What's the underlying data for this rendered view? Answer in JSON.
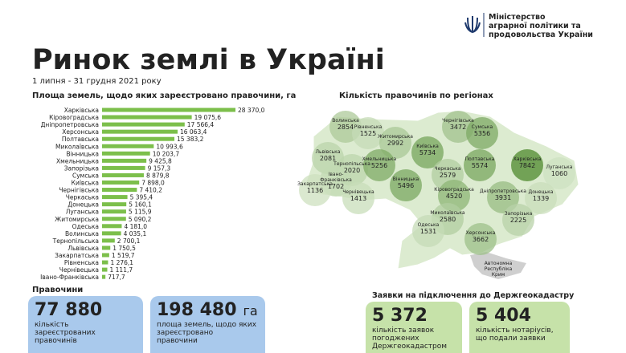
{
  "header": {
    "ministry": [
      "Міністерство",
      "аграрної політики та",
      "продовольства України"
    ],
    "title": "Ринок землі в Україні",
    "period": "1 липня - 31 грудня 2021 року"
  },
  "bar_chart": {
    "type": "bar",
    "orientation": "horizontal",
    "title": "Площа земель, щодо яких зареєстровано правочини, га",
    "color": "#7cbf4b",
    "categories": [
      "Харківська",
      "Кіровоградська",
      "Дніпропетровська",
      "Херсонська",
      "Полтавська",
      "Миколаївська",
      "Вінницька",
      "Хмельницька",
      "Запорізька",
      "Сумська",
      "Київська",
      "Чернігівська",
      "Черкаська",
      "Донецька",
      "Луганська",
      "Житомирська",
      "Одеська",
      "Волинська",
      "Тернопільська",
      "Львівська",
      "Закарпатська",
      "Рівненська",
      "Чернівецька",
      "Івано-Франківська"
    ],
    "values": [
      28370.0,
      19075.6,
      17566.4,
      16063.4,
      15383.2,
      10993.6,
      10203.7,
      9425.8,
      9157.3,
      8879.8,
      7898.0,
      7410.2,
      5395.4,
      5160.1,
      5115.9,
      5090.2,
      4181.0,
      4035.1,
      2700.1,
      1750.5,
      1519.7,
      1276.1,
      1111.7,
      717.7
    ],
    "value_labels": [
      "28 370,0",
      "19 075,6",
      "17 566,4",
      "16 063,4",
      "15 383,2",
      "10 993,6",
      "10 203,7",
      "9 425,8",
      "9 157,3",
      "8 879,8",
      "7 898,0",
      "7 410,2",
      "5 395,4",
      "5 160,1",
      "5 115,9",
      "5 090,2",
      "4 181,0",
      "4 035,1",
      "2 700,1",
      "1 750,5",
      "1 519,7",
      "1 276,1",
      "1 111,7",
      "717,7"
    ]
  },
  "map": {
    "title": "Кількість правочинів по регіонах",
    "regions": [
      {
        "name": [
          "Волинська"
        ],
        "value": 2854
      },
      {
        "name": [
          "Рівненська"
        ],
        "value": 1525
      },
      {
        "name": [
          "Житомирська"
        ],
        "value": 2992
      },
      {
        "name": [
          "Чернігівська"
        ],
        "value": 3472
      },
      {
        "name": [
          "Сумська"
        ],
        "value": 5356
      },
      {
        "name": [
          "Київська"
        ],
        "value": 5734
      },
      {
        "name": [
          "Львівська"
        ],
        "value": 2081
      },
      {
        "name": [
          "Тернопільська"
        ],
        "value": 2020
      },
      {
        "name": [
          "Хмельницька"
        ],
        "value": 5256
      },
      {
        "name": [
          "Полтавська"
        ],
        "value": 5574
      },
      {
        "name": [
          "Харківська"
        ],
        "value": 7842
      },
      {
        "name": [
          "Луганська"
        ],
        "value": 1060
      },
      {
        "name": [
          "Івано-",
          "Франківська"
        ],
        "value": 1702
      },
      {
        "name": [
          "Закарпатська"
        ],
        "value": 1136
      },
      {
        "name": [
          "Чернівецька"
        ],
        "value": 1413
      },
      {
        "name": [
          "Вінницька"
        ],
        "value": 5496
      },
      {
        "name": [
          "Черкаська"
        ],
        "value": 2579
      },
      {
        "name": [
          "Кіровоградська"
        ],
        "value": 4520
      },
      {
        "name": [
          "Дніпропетровська"
        ],
        "value": 3931
      },
      {
        "name": [
          "Донецька"
        ],
        "value": 1339
      },
      {
        "name": [
          "Миколаївська"
        ],
        "value": 2580
      },
      {
        "name": [
          "Запорізька"
        ],
        "value": 2225
      },
      {
        "name": [
          "Одеська"
        ],
        "value": 1531
      },
      {
        "name": [
          "Херсонська"
        ],
        "value": 3662
      }
    ],
    "crimea": [
      "Автономна",
      "Республіка",
      "Крим"
    ]
  },
  "deals": {
    "title": "Правочини",
    "cards": [
      {
        "number": "77 880",
        "text": [
          "кількість",
          "зареєстрованих",
          "правочинів"
        ]
      },
      {
        "number": "198 480",
        "unit": "га",
        "text": [
          "площа земель, щодо яких",
          "зареєстровано",
          "правочини"
        ]
      }
    ]
  },
  "applications": {
    "title": "Заявки на підключення до Держгеокадастру",
    "cards": [
      {
        "number": "5 372",
        "text": [
          "кількість заявок",
          "погоджених",
          "Держгеокадастром"
        ]
      },
      {
        "number": "5 404",
        "text": [
          "кількість нотаріусів,",
          "що подали заявки"
        ]
      }
    ]
  }
}
